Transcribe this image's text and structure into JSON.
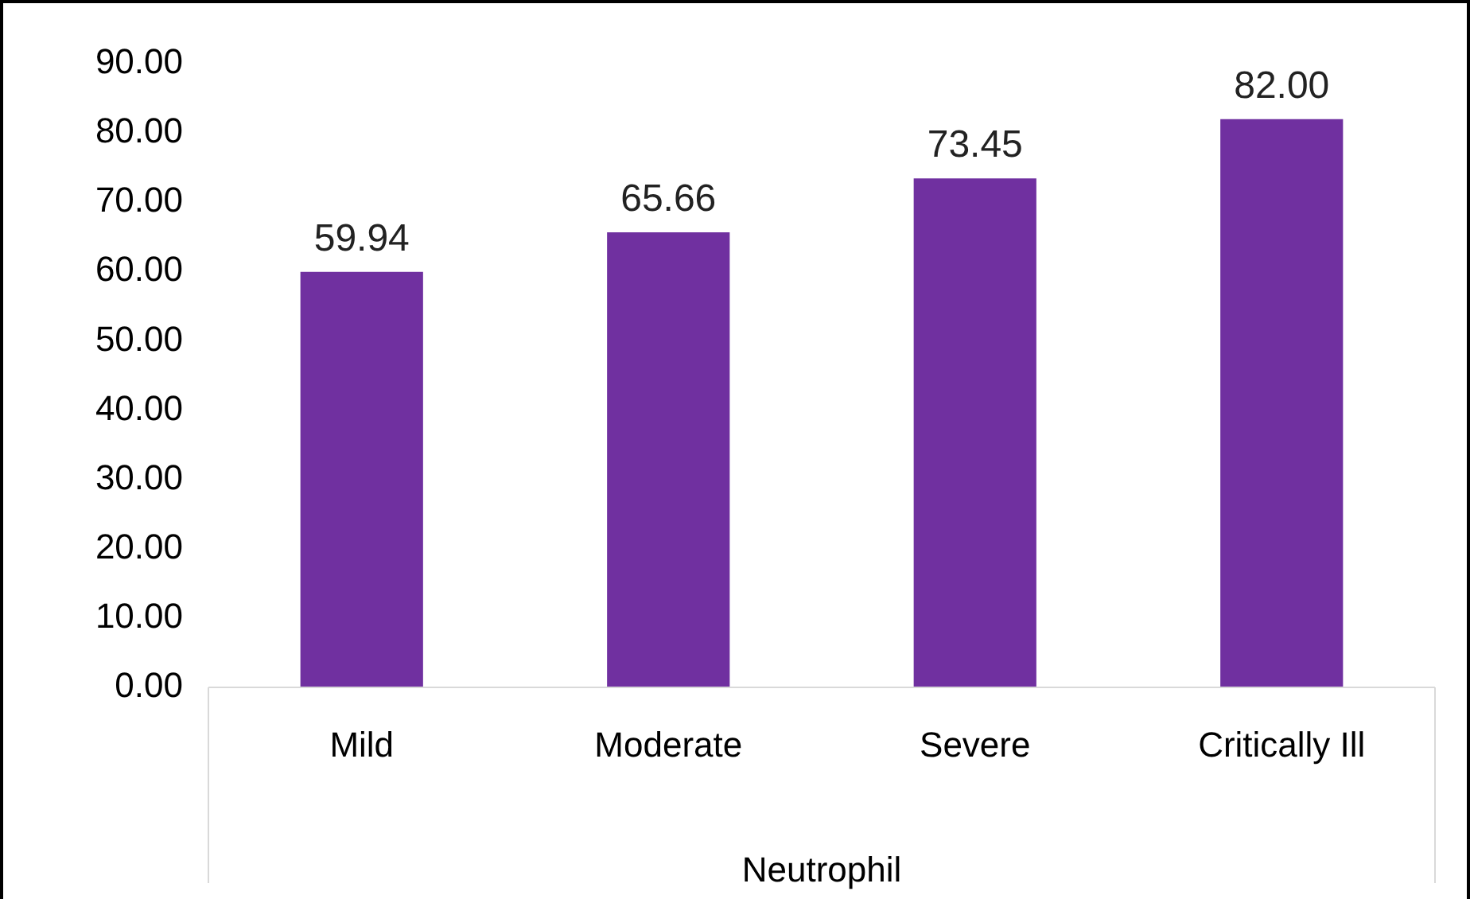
{
  "chart_data": {
    "type": "bar",
    "xlabel": "Neutrophil",
    "categories": [
      "Mild",
      "Moderate",
      "Severe",
      "Critically Ill"
    ],
    "values": [
      59.94,
      65.66,
      73.45,
      82.0
    ],
    "value_labels": [
      "59.94",
      "65.66",
      "73.45",
      "82.00"
    ],
    "color": "#7030a0",
    "ylim": [
      0,
      90
    ],
    "yticks": [
      {
        "value": 0,
        "label": "0.00"
      },
      {
        "value": 10,
        "label": "10.00"
      },
      {
        "value": 20,
        "label": "20.00"
      },
      {
        "value": 30,
        "label": "30.00"
      },
      {
        "value": 40,
        "label": "40.00"
      },
      {
        "value": 50,
        "label": "50.00"
      },
      {
        "value": 60,
        "label": "60.00"
      },
      {
        "value": 70,
        "label": "70.00"
      },
      {
        "value": 80,
        "label": "80.00"
      },
      {
        "value": 90,
        "label": "90.00"
      }
    ],
    "grid": false,
    "legend": false
  }
}
